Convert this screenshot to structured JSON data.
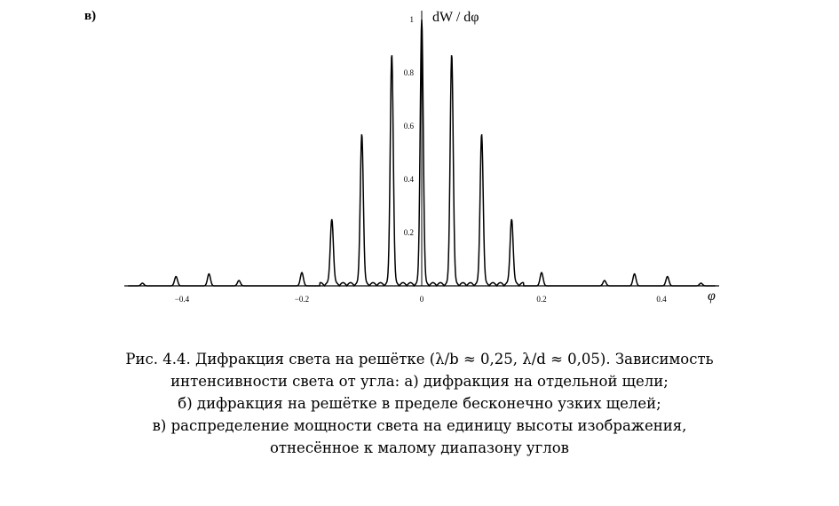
{
  "panel_label": "в)",
  "chart_data": {
    "type": "line",
    "title": "",
    "xlabel": "φ",
    "ylabel": "dW / dφ",
    "xlim": [
      -0.5,
      0.5
    ],
    "ylim": [
      0,
      1
    ],
    "grid": false,
    "legend": "none",
    "x_ticks": [
      -0.4,
      -0.2,
      0,
      0.2,
      0.4
    ],
    "x_tick_labels": [
      "−0.4",
      "−0.2",
      "0",
      "0.2",
      "0.4"
    ],
    "y_ticks": [
      0.2,
      0.4,
      0.6,
      0.8,
      1
    ],
    "y_tick_labels": [
      "0.2",
      "0.4",
      "0.6",
      "0.8",
      "1"
    ],
    "peaks": [
      {
        "x": -0.466,
        "y": 0.01
      },
      {
        "x": -0.41,
        "y": 0.035
      },
      {
        "x": -0.355,
        "y": 0.045
      },
      {
        "x": -0.305,
        "y": 0.02
      },
      {
        "x": -0.2,
        "y": 0.05
      },
      {
        "x": -0.15,
        "y": 0.25
      },
      {
        "x": -0.1,
        "y": 0.57
      },
      {
        "x": -0.05,
        "y": 0.87
      },
      {
        "x": 0,
        "y": 1.0
      },
      {
        "x": 0.05,
        "y": 0.87
      },
      {
        "x": 0.1,
        "y": 0.57
      },
      {
        "x": 0.15,
        "y": 0.25
      },
      {
        "x": 0.2,
        "y": 0.05
      },
      {
        "x": 0.305,
        "y": 0.02
      },
      {
        "x": 0.355,
        "y": 0.045
      },
      {
        "x": 0.41,
        "y": 0.035
      },
      {
        "x": 0.466,
        "y": 0.01
      }
    ]
  },
  "caption": {
    "line1": "Рис. 4.4. Дифракция света на решётке (λ/b ≈ 0,25, λ/d ≈ 0,05). Зависимость",
    "line2": "интенсивности света от угла: а) дифракция на отдельной щели;",
    "line3": "б) дифракция на решётке в пределе бесконечно узких щелей;",
    "line4": "в) распределение мощности света на единицу высоты изображения,",
    "line5": "отнесённое к малому диапазону углов"
  }
}
